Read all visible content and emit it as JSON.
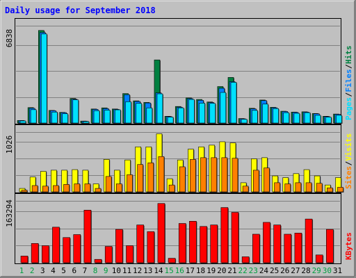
{
  "title": "Daily usage for September 2018",
  "colors": {
    "background": "#c0c0c0",
    "border": "#000000",
    "title": "#0000ff",
    "grid": "#808080",
    "hits": "#008040",
    "files": "#0080ff",
    "pages": "#00e0ff",
    "visits": "#ffff00",
    "sites": "#ff8000",
    "kbytes": "#ff0000",
    "day_normal": "#000000",
    "day_weekend": "#00a040"
  },
  "chart_data": [
    {
      "type": "bar",
      "panel": "hits-files-pages",
      "categories": [
        "1",
        "2",
        "3",
        "4",
        "5",
        "6",
        "7",
        "8",
        "9",
        "10",
        "11",
        "12",
        "13",
        "14",
        "15",
        "16",
        "17",
        "18",
        "19",
        "20",
        "21",
        "22",
        "23",
        "24",
        "25",
        "26",
        "27",
        "28",
        "29",
        "30",
        "31"
      ],
      "axis_max_label": "6838",
      "ylim": [
        0,
        6838
      ],
      "grid": true,
      "legend_labels": [
        "Pages",
        "Files",
        "Hits"
      ],
      "series": [
        {
          "name": "Hits",
          "values": [
            180,
            1100,
            6600,
            900,
            760,
            1750,
            140,
            1000,
            1080,
            1000,
            2100,
            1580,
            1470,
            4500,
            480,
            1180,
            1790,
            1680,
            1500,
            2600,
            3250,
            320,
            1050,
            1640,
            1120,
            840,
            780,
            800,
            680,
            480,
            640
          ]
        },
        {
          "name": "Files",
          "values": [
            180,
            1050,
            6450,
            880,
            740,
            1700,
            130,
            970,
            1030,
            970,
            2020,
            1540,
            1430,
            2150,
            460,
            1130,
            1740,
            1620,
            1460,
            2480,
            2950,
            300,
            1010,
            1600,
            1090,
            820,
            760,
            780,
            660,
            460,
            620
          ]
        },
        {
          "name": "Pages",
          "values": [
            150,
            950,
            6350,
            780,
            660,
            1650,
            110,
            880,
            920,
            940,
            1520,
            1400,
            1080,
            2080,
            420,
            1080,
            1680,
            1420,
            1400,
            2180,
            2900,
            270,
            900,
            1350,
            1030,
            740,
            690,
            740,
            550,
            420,
            550
          ]
        }
      ]
    },
    {
      "type": "bar",
      "panel": "visits-sites",
      "categories": [
        "1",
        "2",
        "3",
        "4",
        "5",
        "6",
        "7",
        "8",
        "9",
        "10",
        "11",
        "12",
        "13",
        "14",
        "15",
        "16",
        "17",
        "18",
        "19",
        "20",
        "21",
        "22",
        "23",
        "24",
        "25",
        "26",
        "27",
        "28",
        "29",
        "30",
        "31"
      ],
      "axis_max_label": "1026",
      "ylim": [
        0,
        1026
      ],
      "grid": true,
      "legend_labels": [
        "Sites",
        "Visits"
      ],
      "series": [
        {
          "name": "Visits",
          "values": [
            60,
            260,
            360,
            380,
            380,
            390,
            380,
            140,
            570,
            380,
            560,
            790,
            790,
            1020,
            230,
            560,
            750,
            790,
            820,
            880,
            860,
            160,
            580,
            600,
            280,
            250,
            320,
            390,
            280,
            120,
            250
          ]
        },
        {
          "name": "Sites",
          "values": [
            30,
            110,
            100,
            110,
            130,
            140,
            140,
            60,
            270,
            140,
            300,
            480,
            510,
            620,
            120,
            440,
            570,
            600,
            600,
            600,
            590,
            100,
            380,
            420,
            160,
            140,
            160,
            160,
            150,
            70,
            80
          ]
        }
      ]
    },
    {
      "type": "bar",
      "panel": "kbytes",
      "categories": [
        "1",
        "2",
        "3",
        "4",
        "5",
        "6",
        "7",
        "8",
        "9",
        "10",
        "11",
        "12",
        "13",
        "14",
        "15",
        "16",
        "17",
        "18",
        "19",
        "20",
        "21",
        "22",
        "23",
        "24",
        "25",
        "26",
        "27",
        "28",
        "29",
        "30",
        "31"
      ],
      "axis_max_label": "163294",
      "ylim": [
        0,
        163294
      ],
      "grid": true,
      "legend_labels": [
        "KBytes"
      ],
      "series": [
        {
          "name": "KBytes",
          "values": [
            18000,
            52000,
            46000,
            96000,
            68000,
            76000,
            142000,
            9000,
            44000,
            90000,
            46000,
            102000,
            84000,
            160000,
            12000,
            106000,
            112000,
            98000,
            102000,
            149000,
            136000,
            16000,
            77000,
            109000,
            102000,
            77000,
            80000,
            118000,
            21000,
            90000,
            0
          ]
        }
      ]
    }
  ],
  "weekend_days": [
    1,
    2,
    8,
    9,
    15,
    16,
    22,
    23,
    29,
    30
  ]
}
